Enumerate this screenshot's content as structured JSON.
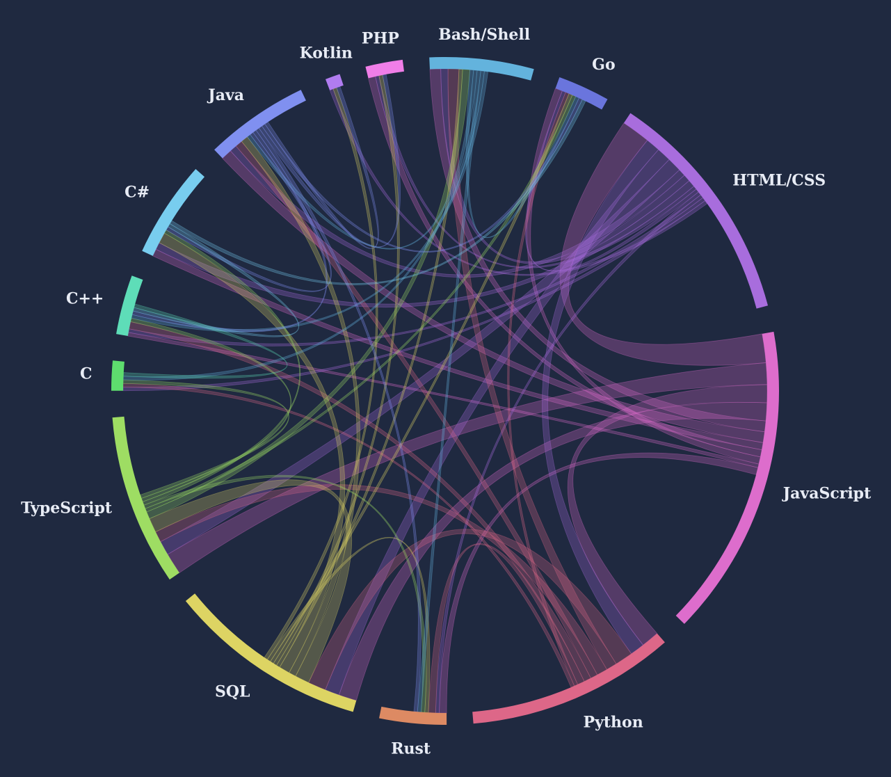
{
  "chart_data": {
    "type": "chord",
    "title": "",
    "groups": [
      {
        "name": "Kotlin",
        "color": "#b07cf0"
      },
      {
        "name": "PHP",
        "color": "#f07ee8"
      },
      {
        "name": "Bash/Shell",
        "color": "#63b3dd"
      },
      {
        "name": "Go",
        "color": "#6a75dd"
      },
      {
        "name": "HTML/CSS",
        "color": "#a86ddd"
      },
      {
        "name": "JavaScript",
        "color": "#dd6dcc"
      },
      {
        "name": "Python",
        "color": "#dd6788"
      },
      {
        "name": "Rust",
        "color": "#dd8a63"
      },
      {
        "name": "SQL",
        "color": "#ddd463"
      },
      {
        "name": "TypeScript",
        "color": "#9edd63"
      },
      {
        "name": "C",
        "color": "#5edd6e"
      },
      {
        "name": "C++",
        "color": "#5eddb8"
      },
      {
        "name": "C#",
        "color": "#78cdef"
      },
      {
        "name": "Java",
        "color": "#8090f0"
      }
    ],
    "group_totals": [
      2,
      5,
      14,
      7,
      32,
      42,
      28,
      9,
      27,
      23,
      4,
      8,
      13,
      14
    ],
    "links": [
      [
        "JavaScript",
        "HTML/CSS",
        8
      ],
      [
        "JavaScript",
        "TypeScript",
        6
      ],
      [
        "JavaScript",
        "Python",
        5
      ],
      [
        "JavaScript",
        "SQL",
        5
      ],
      [
        "JavaScript",
        "Bash/Shell",
        3
      ],
      [
        "JavaScript",
        "Java",
        3
      ],
      [
        "JavaScript",
        "C#",
        2
      ],
      [
        "JavaScript",
        "PHP",
        2
      ],
      [
        "JavaScript",
        "Go",
        2
      ],
      [
        "JavaScript",
        "C++",
        1
      ],
      [
        "JavaScript",
        "Rust",
        2
      ],
      [
        "HTML/CSS",
        "Python",
        4
      ],
      [
        "HTML/CSS",
        "SQL",
        4
      ],
      [
        "HTML/CSS",
        "TypeScript",
        4
      ],
      [
        "HTML/CSS",
        "Java",
        2
      ],
      [
        "HTML/CSS",
        "Bash/Shell",
        2
      ],
      [
        "HTML/CSS",
        "C#",
        2
      ],
      [
        "HTML/CSS",
        "PHP",
        1
      ],
      [
        "HTML/CSS",
        "Go",
        1
      ],
      [
        "HTML/CSS",
        "Rust",
        1
      ],
      [
        "HTML/CSS",
        "C++",
        1
      ],
      [
        "HTML/CSS",
        "C",
        1
      ],
      [
        "HTML/CSS",
        "Kotlin",
        1
      ],
      [
        "Python",
        "SQL",
        5
      ],
      [
        "Python",
        "Bash/Shell",
        3
      ],
      [
        "Python",
        "TypeScript",
        3
      ],
      [
        "Python",
        "Java",
        2
      ],
      [
        "Python",
        "C++",
        2
      ],
      [
        "Python",
        "Rust",
        2
      ],
      [
        "Python",
        "Go",
        1
      ],
      [
        "Python",
        "C",
        1
      ],
      [
        "SQL",
        "TypeScript",
        4
      ],
      [
        "SQL",
        "Java",
        2
      ],
      [
        "SQL",
        "C#",
        3
      ],
      [
        "SQL",
        "Bash/Shell",
        1
      ],
      [
        "SQL",
        "PHP",
        1
      ],
      [
        "SQL",
        "Go",
        1
      ],
      [
        "SQL",
        "Rust",
        1
      ],
      [
        "SQL",
        "Kotlin",
        1
      ],
      [
        "TypeScript",
        "Bash/Shell",
        2
      ],
      [
        "TypeScript",
        "Go",
        1
      ],
      [
        "TypeScript",
        "Rust",
        1
      ],
      [
        "TypeScript",
        "C#",
        1
      ],
      [
        "TypeScript",
        "C++",
        1
      ],
      [
        "TypeScript",
        "C",
        1
      ],
      [
        "Bash/Shell",
        "Go",
        1
      ],
      [
        "Bash/Shell",
        "Java",
        1
      ],
      [
        "Bash/Shell",
        "Rust",
        1
      ],
      [
        "Bash/Shell",
        "C",
        1
      ],
      [
        "Bash/Shell",
        "C++",
        1
      ],
      [
        "Java",
        "C#",
        1
      ],
      [
        "Java",
        "C++",
        1
      ],
      [
        "Java",
        "Rust",
        1
      ],
      [
        "Java",
        "PHP",
        1
      ],
      [
        "Java",
        "Go",
        1
      ],
      [
        "Java",
        "Kotlin",
        1
      ],
      [
        "C#",
        "C++",
        1
      ],
      [
        "C#",
        "Go",
        1
      ],
      [
        "C++",
        "C",
        1
      ]
    ]
  }
}
